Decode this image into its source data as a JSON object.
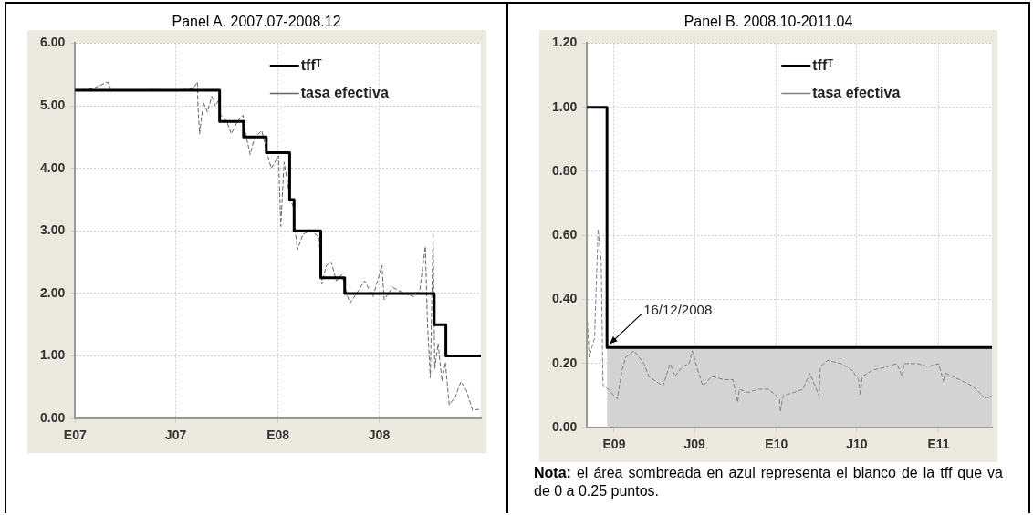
{
  "chart_data": [
    {
      "type": "line",
      "title": "Panel A. 2007.07-2008.12",
      "grid": true,
      "legend": "top right",
      "xlim": [
        "2007-01-01",
        "2008-12-31"
      ],
      "xticks": [
        {
          "value": "2007-01-01",
          "label": "E07"
        },
        {
          "value": "2007-07-01",
          "label": "J07"
        },
        {
          "value": "2008-01-01",
          "label": "E08"
        },
        {
          "value": "2008-07-01",
          "label": "J08"
        }
      ],
      "ylim": [
        0,
        6
      ],
      "yticks": [
        {
          "value": 0,
          "label": "0.00"
        },
        {
          "value": 1,
          "label": "1.00"
        },
        {
          "value": 2,
          "label": "2.00"
        },
        {
          "value": 3,
          "label": "3.00"
        },
        {
          "value": 4,
          "label": "4.00"
        },
        {
          "value": 5,
          "label": "5.00"
        },
        {
          "value": 6,
          "label": "6.00"
        }
      ],
      "series": [
        {
          "name": "tffᵀ",
          "type": "step",
          "color": "#000000",
          "x": [
            "2007-01-01",
            "2007-09-18",
            "2007-10-31",
            "2007-12-11",
            "2008-01-22",
            "2008-01-30",
            "2008-03-18",
            "2008-04-30",
            "2008-10-08",
            "2008-10-29",
            "2008-12-31"
          ],
          "values": [
            5.25,
            4.75,
            4.5,
            4.25,
            3.5,
            3.0,
            2.25,
            2.0,
            1.5,
            1.0,
            1.0
          ]
        },
        {
          "name": "tasa efectiva",
          "type": "line",
          "line_style": "dashed",
          "color": "#666666",
          "x": [
            "2007-01-02",
            "2007-02-01",
            "2007-03-01",
            "2007-03-05",
            "2007-04-15",
            "2007-05-20",
            "2007-07-01",
            "2007-08-01",
            "2007-08-09",
            "2007-08-10",
            "2007-08-13",
            "2007-08-20",
            "2007-08-27",
            "2007-09-04",
            "2007-09-10",
            "2007-09-17",
            "2007-09-20",
            "2007-10-01",
            "2007-10-09",
            "2007-10-20",
            "2007-10-30",
            "2007-11-05",
            "2007-11-12",
            "2007-11-20",
            "2007-12-03",
            "2007-12-12",
            "2007-12-20",
            "2008-01-02",
            "2008-01-06",
            "2008-01-12",
            "2008-01-23",
            "2008-01-28",
            "2008-02-01",
            "2008-02-05",
            "2008-02-15",
            "2008-03-01",
            "2008-03-15",
            "2008-03-20",
            "2008-03-28",
            "2008-04-06",
            "2008-04-15",
            "2008-04-25",
            "2008-05-05",
            "2008-05-10",
            "2008-05-25",
            "2008-06-05",
            "2008-06-20",
            "2008-07-06",
            "2008-07-10",
            "2008-07-25",
            "2008-08-15",
            "2008-09-01",
            "2008-09-12",
            "2008-09-22",
            "2008-09-26",
            "2008-10-01",
            "2008-10-06",
            "2008-10-09",
            "2008-10-15",
            "2008-10-22",
            "2008-10-28",
            "2008-11-04",
            "2008-11-15",
            "2008-11-25",
            "2008-12-05",
            "2008-12-16",
            "2008-12-28"
          ],
          "values": [
            5.25,
            5.27,
            5.38,
            5.25,
            5.24,
            5.26,
            5.25,
            5.27,
            5.38,
            5.0,
            4.55,
            5.05,
            4.9,
            5.15,
            5.0,
            5.1,
            4.85,
            4.75,
            4.55,
            4.75,
            4.85,
            4.5,
            4.22,
            4.5,
            4.6,
            4.25,
            4.0,
            4.2,
            3.07,
            4.1,
            3.5,
            3.4,
            3.0,
            2.7,
            2.95,
            3.0,
            2.9,
            2.15,
            2.45,
            2.5,
            2.2,
            2.3,
            1.95,
            1.85,
            2.05,
            2.2,
            1.95,
            2.45,
            1.9,
            2.1,
            2.0,
            1.95,
            2.05,
            2.75,
            1.5,
            0.65,
            2.95,
            0.8,
            1.2,
            0.6,
            0.9,
            0.22,
            0.35,
            0.59,
            0.45,
            0.13,
            0.15
          ]
        }
      ]
    },
    {
      "type": "line",
      "title": "Panel B. 2008.10-2011.04",
      "grid": true,
      "legend": "top right",
      "xlim": [
        "2008-11-01",
        "2011-05-01"
      ],
      "xticks": [
        {
          "value": "2009-01-01",
          "label": "E09"
        },
        {
          "value": "2009-07-01",
          "label": "J09"
        },
        {
          "value": "2010-01-01",
          "label": "E10"
        },
        {
          "value": "2010-07-01",
          "label": "J10"
        },
        {
          "value": "2011-01-01",
          "label": "E11"
        }
      ],
      "ylim": [
        0,
        1.2
      ],
      "yticks": [
        {
          "value": 0,
          "label": "0.00"
        },
        {
          "value": 0.2,
          "label": "0.20"
        },
        {
          "value": 0.4,
          "label": "0.40"
        },
        {
          "value": 0.6,
          "label": "0.60"
        },
        {
          "value": 0.8,
          "label": "0.80"
        },
        {
          "value": 1.0,
          "label": "1.00"
        },
        {
          "value": 1.2,
          "label": "1.20"
        }
      ],
      "annotations": [
        {
          "text": "16/12/2008",
          "x": "2008-12-16",
          "y": 0.25
        },
        "Nota: el área sombreada en azul representa el blanco de la tff que va de 0 a 0.25 puntos."
      ],
      "series": [
        {
          "name": "tffᵀ",
          "type": "step",
          "color": "#000000",
          "x": [
            "2008-11-01",
            "2008-12-16",
            "2011-05-01"
          ],
          "values": [
            1.0,
            0.25,
            0.25
          ]
        },
        {
          "name": "tasa efectiva",
          "type": "line",
          "line_style": "dashed",
          "color": "#808080",
          "x": [
            "2008-11-02",
            "2008-11-06",
            "2008-11-18",
            "2008-11-26",
            "2008-12-03",
            "2008-12-07",
            "2008-12-19",
            "2009-01-08",
            "2009-01-19",
            "2009-01-27",
            "2009-02-15",
            "2009-03-09",
            "2009-03-20",
            "2009-04-10",
            "2009-04-21",
            "2009-05-07",
            "2009-05-18",
            "2009-06-03",
            "2009-06-19",
            "2009-06-26",
            "2009-07-08",
            "2009-07-20",
            "2009-08-09",
            "2009-09-05",
            "2009-09-25",
            "2009-10-06",
            "2009-10-10",
            "2009-10-29",
            "2009-11-22",
            "2009-12-15",
            "2010-01-08",
            "2010-01-10",
            "2010-01-16",
            "2010-02-09",
            "2010-03-02",
            "2010-03-17",
            "2010-04-07",
            "2010-04-10",
            "2010-04-26",
            "2010-05-27",
            "2010-06-20",
            "2010-07-05",
            "2010-07-09",
            "2010-07-13",
            "2010-08-06",
            "2010-09-06",
            "2010-09-29",
            "2010-10-11",
            "2010-10-15",
            "2010-11-15",
            "2010-12-08",
            "2011-01-01",
            "2011-01-13",
            "2011-01-17",
            "2011-02-17",
            "2011-03-18",
            "2011-04-18",
            "2011-04-30"
          ],
          "values": [
            0.33,
            0.22,
            0.28,
            0.62,
            0.52,
            0.13,
            0.12,
            0.09,
            0.18,
            0.22,
            0.24,
            0.2,
            0.16,
            0.14,
            0.13,
            0.2,
            0.16,
            0.19,
            0.2,
            0.24,
            0.18,
            0.13,
            0.16,
            0.15,
            0.15,
            0.08,
            0.12,
            0.11,
            0.12,
            0.12,
            0.09,
            0.05,
            0.1,
            0.11,
            0.12,
            0.17,
            0.1,
            0.19,
            0.21,
            0.2,
            0.18,
            0.15,
            0.1,
            0.16,
            0.18,
            0.19,
            0.2,
            0.16,
            0.2,
            0.2,
            0.19,
            0.2,
            0.14,
            0.17,
            0.15,
            0.13,
            0.09,
            0.1
          ]
        },
        {
          "type": "area",
          "color": "#d3d3d3",
          "x": [
            "2008-12-16",
            "2011-05-01"
          ],
          "values": [
            0.25,
            0.25
          ]
        }
      ]
    }
  ]
}
